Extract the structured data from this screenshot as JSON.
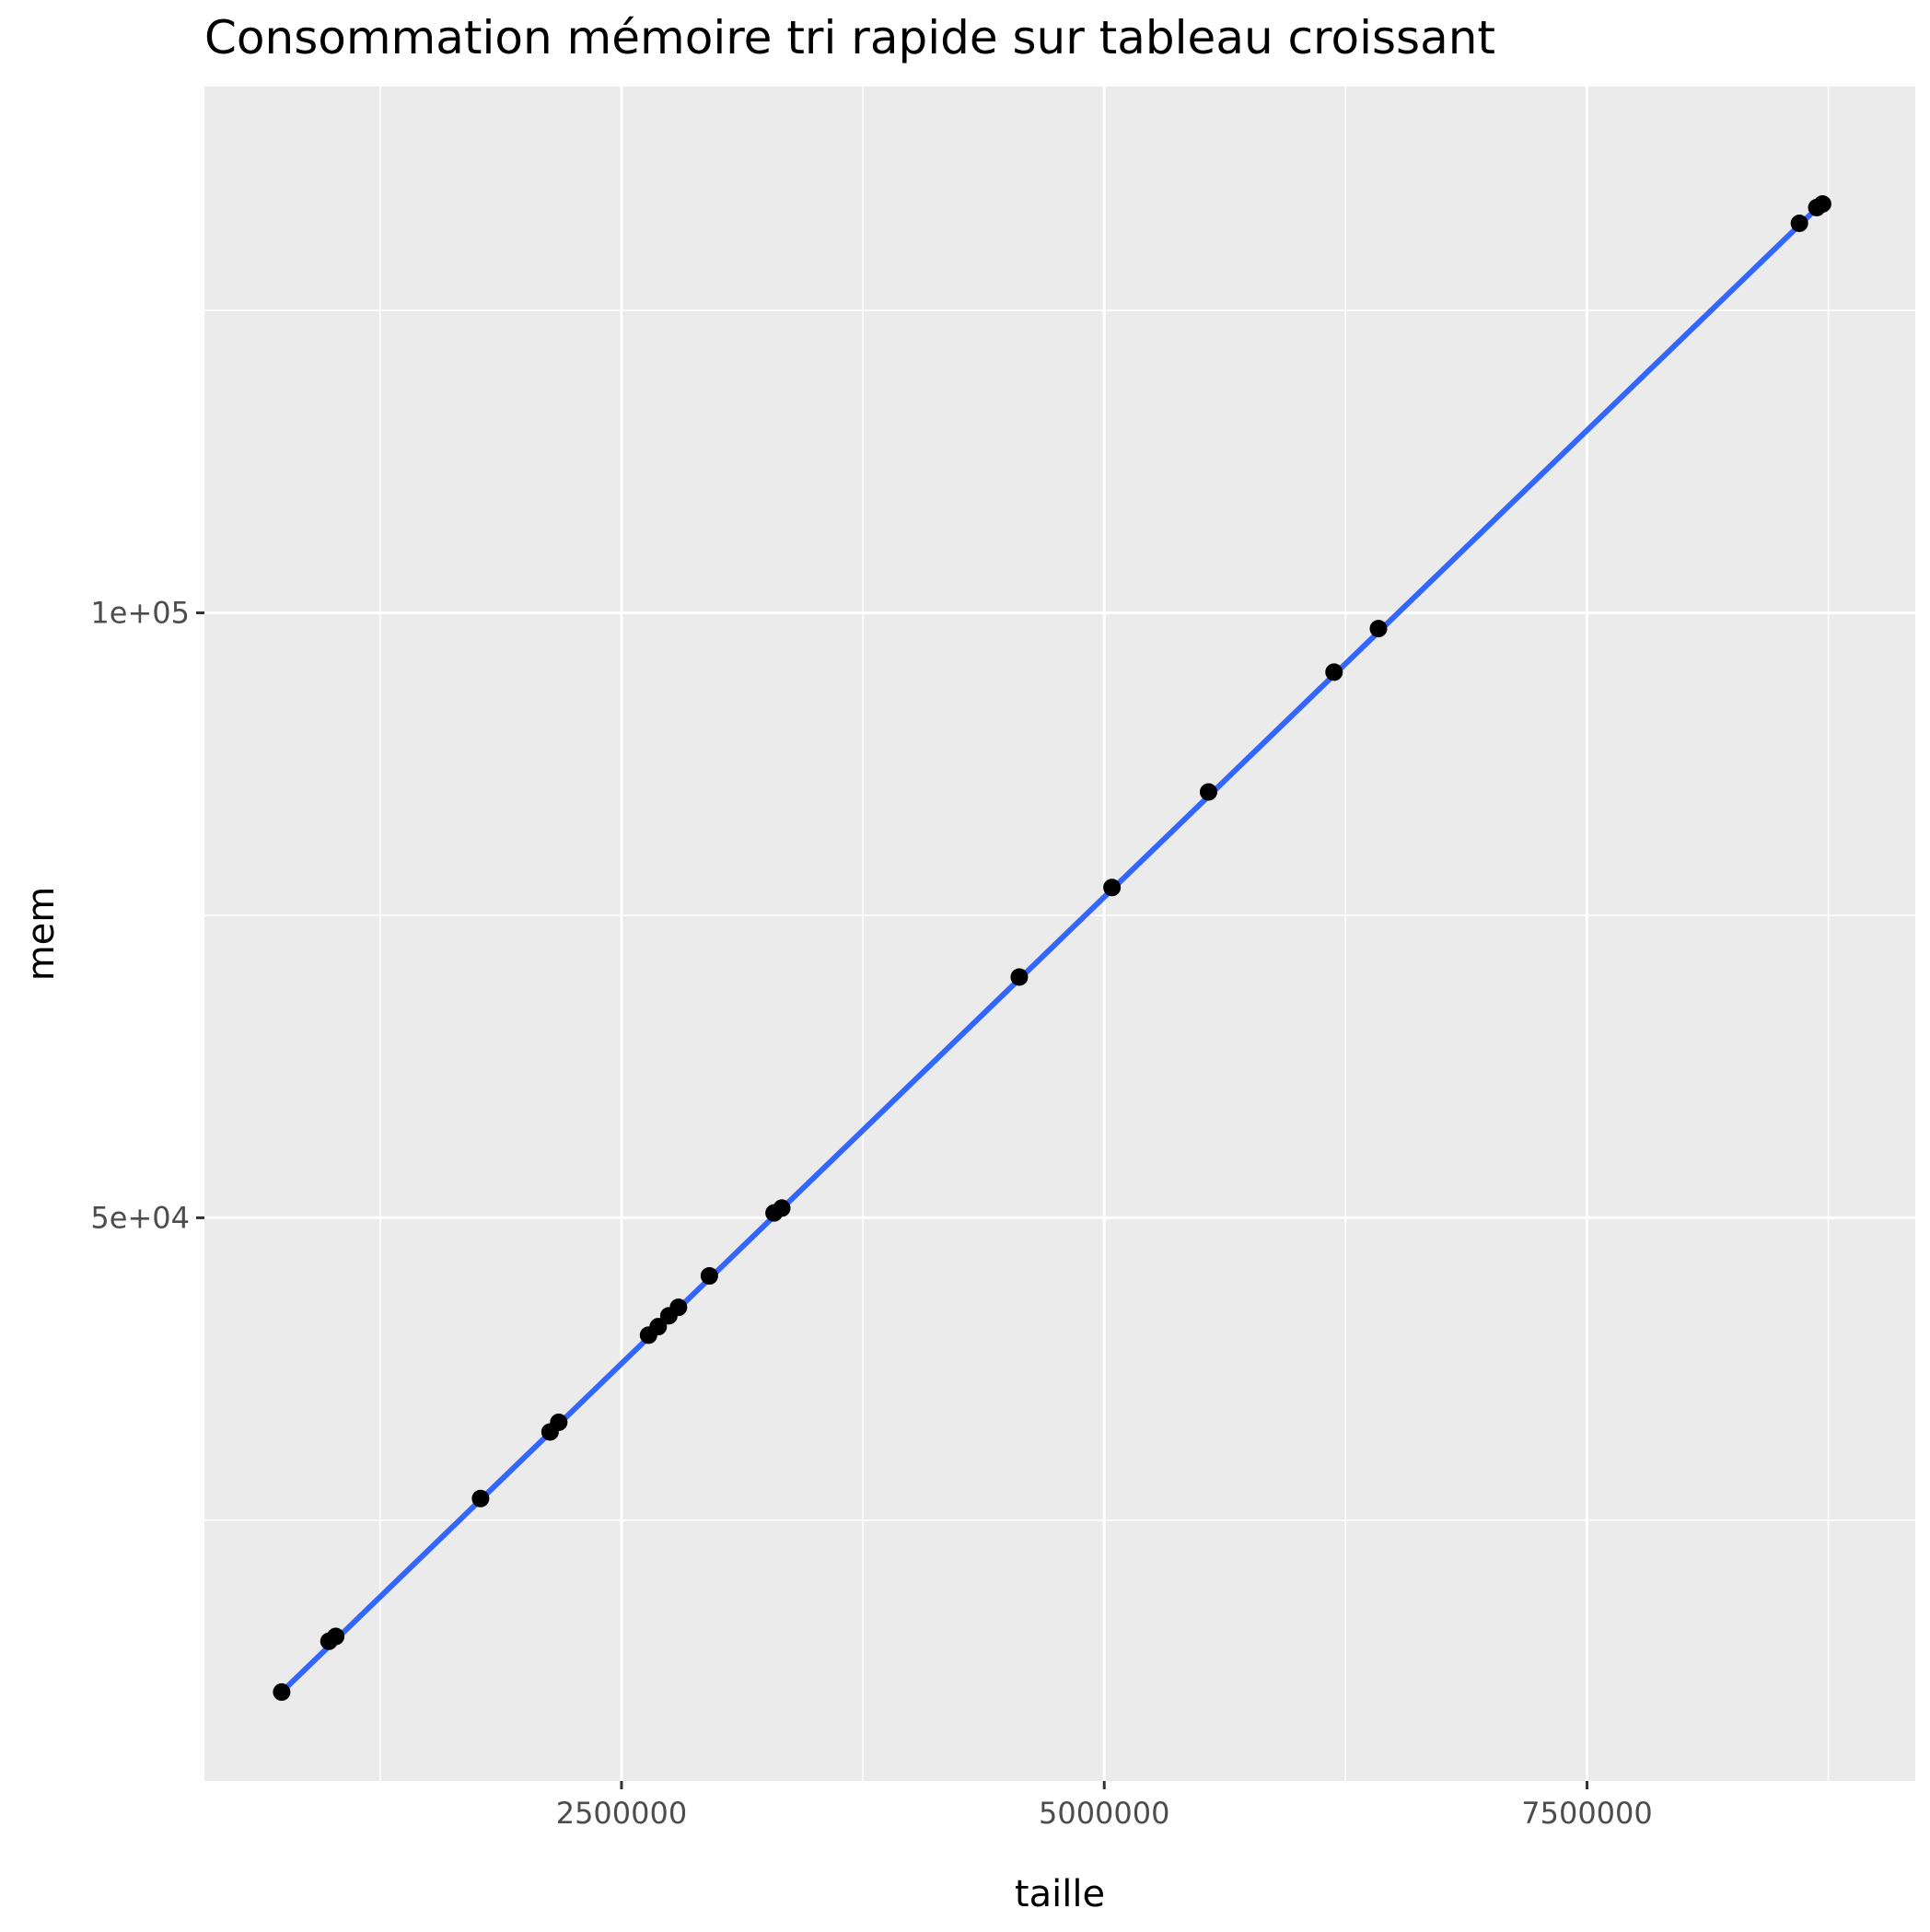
{
  "chart_data": {
    "type": "scatter",
    "title": "Consommation mémoire tri rapide sur tableau croissant",
    "xlabel": "taille",
    "ylabel": "mem",
    "xlim": [
      340000,
      9200000
    ],
    "ylim": [
      3450,
      143500
    ],
    "x_ticks": [
      {
        "value": 2500000,
        "label": "2500000"
      },
      {
        "value": 5000000,
        "label": "5000000"
      },
      {
        "value": 7500000,
        "label": "7500000"
      }
    ],
    "x_minor_ticks": [
      1250000,
      3750000,
      6250000,
      8750000
    ],
    "y_ticks": [
      {
        "value": 50000,
        "label": "5e+04"
      },
      {
        "value": 100000,
        "label": "1e+05"
      }
    ],
    "y_minor_ticks": [
      25000,
      75000,
      125000
    ],
    "grid": true,
    "background": "#ebebeb",
    "grid_color": "#ffffff",
    "point_color": "#000000",
    "fit_color": "#3366ff",
    "points": [
      {
        "x": 740000,
        "y": 10800
      },
      {
        "x": 985000,
        "y": 15000
      },
      {
        "x": 1020000,
        "y": 15400
      },
      {
        "x": 1770000,
        "y": 26800
      },
      {
        "x": 2130000,
        "y": 32300
      },
      {
        "x": 2175000,
        "y": 33100
      },
      {
        "x": 2640000,
        "y": 40300
      },
      {
        "x": 2690000,
        "y": 41000
      },
      {
        "x": 2745000,
        "y": 41900
      },
      {
        "x": 2795000,
        "y": 42600
      },
      {
        "x": 2955000,
        "y": 45200
      },
      {
        "x": 3290000,
        "y": 50400
      },
      {
        "x": 3330000,
        "y": 50800
      },
      {
        "x": 4560000,
        "y": 69900
      },
      {
        "x": 5040000,
        "y": 77300
      },
      {
        "x": 5540000,
        "y": 85200
      },
      {
        "x": 6190000,
        "y": 95100
      },
      {
        "x": 6420000,
        "y": 98700
      },
      {
        "x": 8600000,
        "y": 132200
      },
      {
        "x": 8690000,
        "y": 133500
      },
      {
        "x": 8720000,
        "y": 133800
      }
    ],
    "fit_line": {
      "x": [
        740000,
        8720000
      ],
      "y": [
        10800,
        133900
      ]
    }
  }
}
